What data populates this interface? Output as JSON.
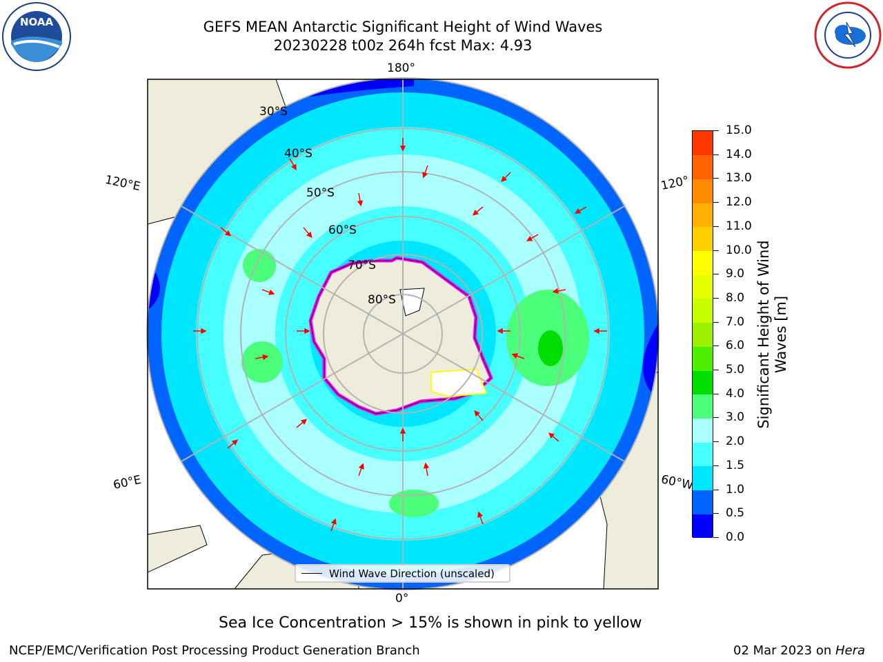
{
  "header": {
    "title_line1": "GEFS MEAN Antarctic Significant Height of Wind Waves",
    "title_line2": "20230228 t00z 264h fcst   Max: 4.93"
  },
  "logos": {
    "left_icon": "noaa-logo",
    "left_text": "NOAA",
    "right_icon": "nws-logo"
  },
  "map": {
    "projection": "south-polar-stereographic",
    "land_color": "#eeecda",
    "ice_colors": [
      "#ff00ff",
      "#ffff00"
    ],
    "arrow_color": "#ff0000",
    "longitude_labels": [
      "180°",
      "120°E",
      "120°",
      "60°E",
      "60°W",
      "0°"
    ],
    "latitude_labels": [
      "30°S",
      "40°S",
      "50°S",
      "60°S",
      "70°S",
      "80°S"
    ],
    "legend_label": "Wind Wave Direction (unscaled)"
  },
  "colorbar": {
    "title": "Significant Height of Wind Waves [m]",
    "ticks": [
      "15.0",
      "14.0",
      "13.0",
      "12.0",
      "11.0",
      "10.0",
      "9.0",
      "8.0",
      "7.0",
      "6.0",
      "5.0",
      "4.0",
      "3.0",
      "2.0",
      "1.5",
      "1.0",
      "0.5",
      "0.0"
    ],
    "colors": [
      "#0000ff",
      "#0064ff",
      "#00e6ff",
      "#46ffff",
      "#aaffff",
      "#4cff7a",
      "#00dd00",
      "#4ef000",
      "#9ef000",
      "#c8ff00",
      "#e6ff00",
      "#ffff00",
      "#ffd000",
      "#ffb000",
      "#ff8c00",
      "#ff6400",
      "#ff3800"
    ]
  },
  "caption": "Sea Ice Concentration > 15% is shown in pink to yellow",
  "footer": {
    "left": "NCEP/EMC/Verification Post Processing Product Generation Branch",
    "right_date": "02 Mar 2023 on ",
    "right_machine": "Hera"
  }
}
